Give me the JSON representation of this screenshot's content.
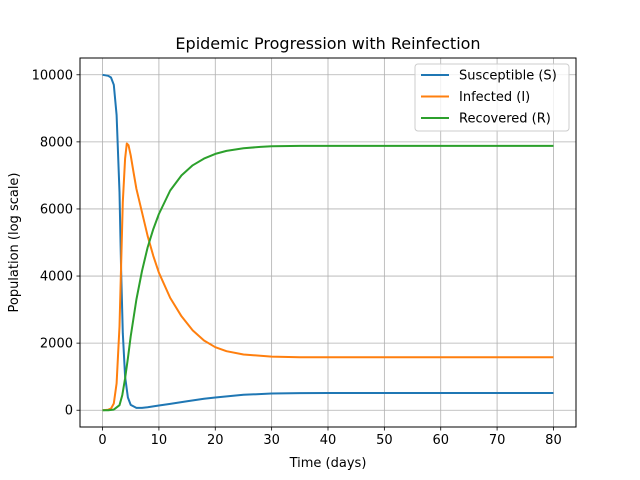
{
  "chart_data": {
    "type": "line",
    "title": "Epidemic Progression with Reinfection",
    "xlabel": "Time (days)",
    "ylabel": "Population (log scale)",
    "xlim": [
      -4,
      84
    ],
    "ylim": [
      -500,
      10500
    ],
    "x_ticks": [
      0,
      10,
      20,
      30,
      40,
      50,
      60,
      70,
      80
    ],
    "y_ticks": [
      0,
      2000,
      4000,
      6000,
      8000,
      10000
    ],
    "grid": true,
    "legend_position": "top-right",
    "series": [
      {
        "name": "Susceptible (S)",
        "color": "#1f77b4",
        "x": [
          0,
          1,
          1.5,
          2,
          2.5,
          3,
          3.3,
          3.6,
          4,
          4.5,
          5,
          6,
          7,
          8,
          10,
          12,
          15,
          18,
          20,
          25,
          30,
          35,
          40,
          50,
          60,
          70,
          80
        ],
        "y": [
          10000,
          9970,
          9920,
          9700,
          8800,
          6500,
          4200,
          2300,
          1000,
          380,
          160,
          70,
          70,
          90,
          140,
          190,
          270,
          340,
          380,
          460,
          500,
          510,
          515,
          515,
          515,
          515,
          515
        ]
      },
      {
        "name": "Infected (I)",
        "color": "#ff7f0e",
        "x": [
          0,
          1,
          1.5,
          2,
          2.5,
          3,
          3.3,
          3.6,
          4,
          4.3,
          4.6,
          5,
          5.5,
          6,
          7,
          8,
          9,
          10,
          12,
          14,
          16,
          18,
          20,
          22,
          25,
          30,
          35,
          40,
          50,
          60,
          70,
          80
        ],
        "y": [
          0,
          15,
          50,
          200,
          800,
          2500,
          4300,
          6200,
          7500,
          7950,
          7900,
          7600,
          7100,
          6600,
          5900,
          5200,
          4600,
          4100,
          3350,
          2800,
          2380,
          2080,
          1880,
          1760,
          1660,
          1600,
          1580,
          1580,
          1580,
          1580,
          1580,
          1580
        ]
      },
      {
        "name": "Recovered (R)",
        "color": "#2ca02c",
        "x": [
          0,
          1,
          2,
          3,
          3.5,
          4,
          4.5,
          5,
          6,
          7,
          8,
          9,
          10,
          12,
          14,
          16,
          18,
          20,
          22,
          25,
          28,
          30,
          35,
          40,
          50,
          60,
          70,
          80
        ],
        "y": [
          0,
          2,
          20,
          150,
          450,
          950,
          1550,
          2200,
          3300,
          4150,
          4850,
          5400,
          5850,
          6550,
          7000,
          7300,
          7500,
          7640,
          7730,
          7810,
          7850,
          7870,
          7880,
          7880,
          7880,
          7880,
          7880,
          7880
        ]
      }
    ]
  }
}
